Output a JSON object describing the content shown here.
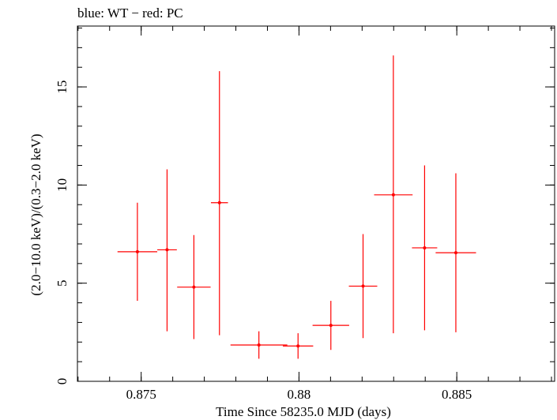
{
  "chart_data": {
    "type": "scatter",
    "title": "blue: WT − red: PC",
    "xlabel": "Time Since 58235.0 MJD (days)",
    "ylabel": "(2.0−10.0 keV)/(0.3−2.0 keV)",
    "xlim": [
      0.87298,
      0.8881
    ],
    "ylim": [
      0,
      18.1
    ],
    "x_ticks": [
      {
        "value": 0.875,
        "label": "0.875"
      },
      {
        "value": 0.88,
        "label": "0.88"
      },
      {
        "value": 0.885,
        "label": "0.885"
      }
    ],
    "y_ticks": [
      {
        "value": 0,
        "label": "0"
      },
      {
        "value": 5,
        "label": "5"
      },
      {
        "value": 10,
        "label": "10"
      },
      {
        "value": 15,
        "label": "15"
      }
    ],
    "x_minor_step": 0.001,
    "y_minor_step": 1,
    "series": [
      {
        "name": "PC",
        "color": "#ff0000",
        "points": [
          {
            "x": 0.87488,
            "xerr": 0.00063,
            "y": 6.6,
            "ylo": 4.1,
            "yhi": 9.1
          },
          {
            "x": 0.87582,
            "xerr": 0.00031,
            "y": 6.7,
            "ylo": 2.55,
            "yhi": 10.8
          },
          {
            "x": 0.87667,
            "xerr": 0.00053,
            "y": 4.8,
            "ylo": 2.15,
            "yhi": 7.45
          },
          {
            "x": 0.87748,
            "xerr": 0.00027,
            "y": 9.1,
            "ylo": 2.35,
            "yhi": 15.8
          },
          {
            "x": 0.87873,
            "xerr": 0.0009,
            "y": 1.85,
            "ylo": 1.15,
            "yhi": 2.55
          },
          {
            "x": 0.87997,
            "xerr": 0.00048,
            "y": 1.8,
            "ylo": 1.15,
            "yhi": 2.45
          },
          {
            "x": 0.88101,
            "xerr": 0.00058,
            "y": 2.85,
            "ylo": 1.6,
            "yhi": 4.1
          },
          {
            "x": 0.88203,
            "xerr": 0.00045,
            "y": 4.85,
            "ylo": 2.2,
            "yhi": 7.5
          },
          {
            "x": 0.88299,
            "xerr": 0.00061,
            "y": 9.5,
            "ylo": 2.45,
            "yhi": 16.6
          },
          {
            "x": 0.88398,
            "xerr": 0.0004,
            "y": 6.8,
            "ylo": 2.6,
            "yhi": 11.0
          },
          {
            "x": 0.88497,
            "xerr": 0.00064,
            "y": 6.55,
            "ylo": 2.5,
            "yhi": 10.6
          }
        ]
      }
    ]
  }
}
